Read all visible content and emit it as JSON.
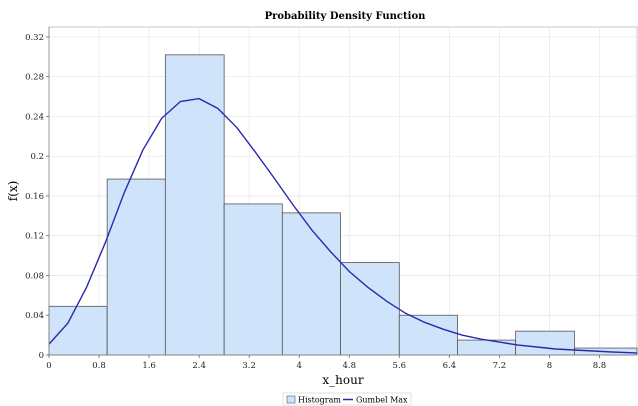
{
  "chart_data": {
    "type": "bar",
    "title": "Probability Density Function",
    "xlabel": "x_hour",
    "ylabel": "f(x)",
    "xlim": [
      0,
      9.4
    ],
    "ylim": [
      0,
      0.33
    ],
    "x_ticks": [
      "0",
      "0.8",
      "1.6",
      "2.4",
      "3.2",
      "4",
      "4.8",
      "5.6",
      "6.4",
      "7.2",
      "8",
      "8.8"
    ],
    "y_ticks": [
      "0",
      "0.04",
      "0.08",
      "0.12",
      "0.16",
      "0.2",
      "0.24",
      "0.28",
      "0.32"
    ],
    "grid": true,
    "legend_position": "bottom-center",
    "histogram": {
      "name": "Histogram",
      "bin_edges": [
        0,
        0.93,
        1.86,
        2.8,
        3.73,
        4.66,
        5.6,
        6.53,
        7.46,
        8.4,
        9.4
      ],
      "values": [
        0.049,
        0.177,
        0.302,
        0.152,
        0.143,
        0.093,
        0.04,
        0.015,
        0.024,
        0.007
      ],
      "fill": "#cfe4fb",
      "stroke": "#555555"
    },
    "curve": {
      "name": "Gumbel Max",
      "color": "#2a2ab0",
      "x": [
        0,
        0.3,
        0.6,
        0.9,
        1.2,
        1.5,
        1.8,
        2.1,
        2.4,
        2.7,
        3.0,
        3.3,
        3.6,
        3.9,
        4.2,
        4.5,
        4.8,
        5.1,
        5.4,
        5.7,
        6.0,
        6.3,
        6.6,
        6.9,
        7.2,
        7.5,
        7.8,
        8.1,
        8.4,
        8.7,
        9.0,
        9.4
      ],
      "y": [
        0.011,
        0.032,
        0.068,
        0.113,
        0.163,
        0.206,
        0.238,
        0.255,
        0.258,
        0.248,
        0.229,
        0.204,
        0.178,
        0.151,
        0.126,
        0.104,
        0.084,
        0.068,
        0.054,
        0.042,
        0.033,
        0.026,
        0.02,
        0.016,
        0.013,
        0.01,
        0.008,
        0.006,
        0.005,
        0.004,
        0.003,
        0.002
      ]
    }
  }
}
